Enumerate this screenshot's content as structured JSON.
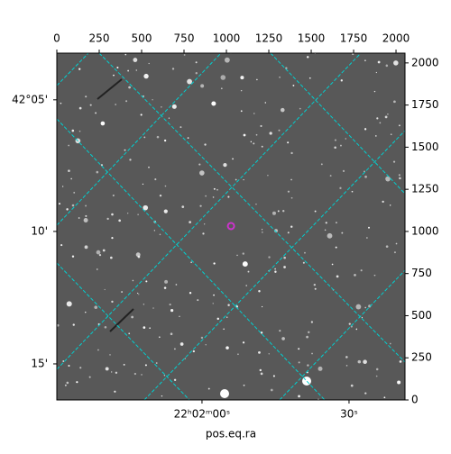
{
  "chart_data": {
    "type": "image",
    "xlabel": "pos.eq.ra",
    "xlim": [
      0,
      2053
    ],
    "ylim": [
      0,
      2058
    ],
    "xticks": [
      0,
      250,
      500,
      750,
      1000,
      1250,
      1500,
      1750,
      2000
    ],
    "yticks": [
      0,
      250,
      500,
      750,
      1000,
      1250,
      1500,
      1750,
      2000
    ],
    "wcs_xticks": [
      {
        "value": 856,
        "label": "22ʰ02ᵐ00ˢ"
      },
      {
        "value": 1723,
        "label": "30ˢ"
      }
    ],
    "wcs_yticks": [
      {
        "value": 1781,
        "label": "42°05'"
      },
      {
        "value": 1000,
        "label": "10'"
      },
      {
        "value": 214,
        "label": "15'"
      }
    ],
    "marker": {
      "x": 1027,
      "y": 1032,
      "color": "#cc33cc"
    }
  }
}
